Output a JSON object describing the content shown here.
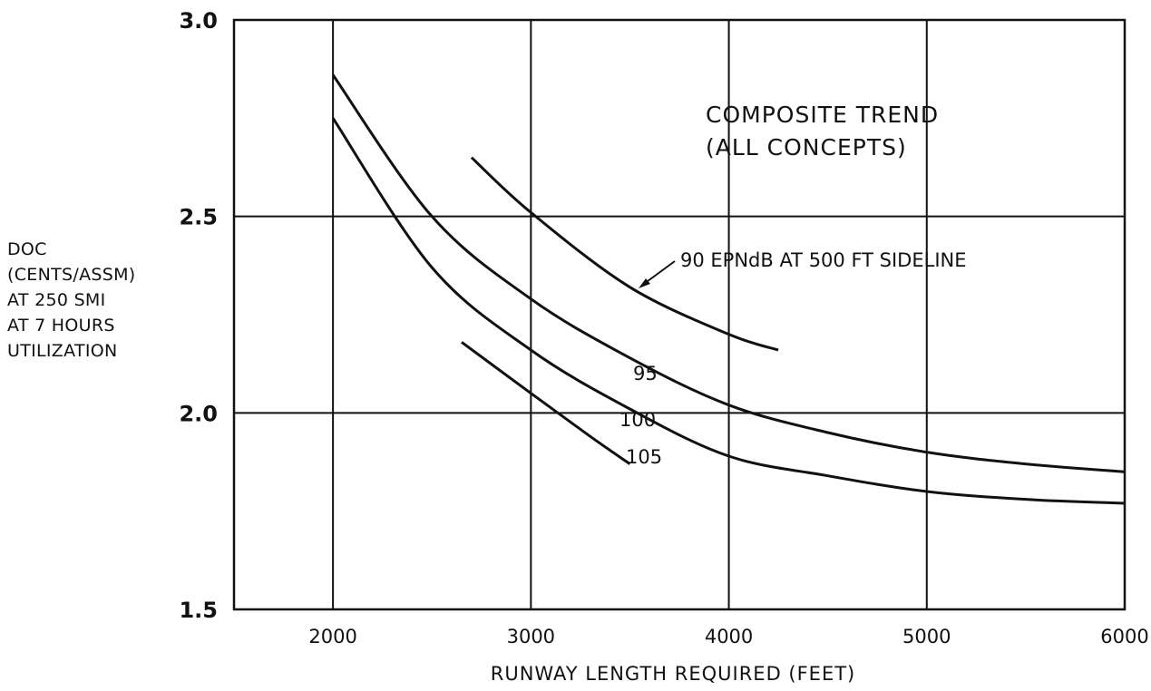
{
  "chart_data": {
    "type": "line",
    "xlabel": "RUNWAY LENGTH REQUIRED (FEET)",
    "ylabel_lines": [
      "DOC",
      "(CENTS/ASSM)",
      "AT 250 SMI",
      "AT 7 HOURS",
      "UTILIZATION"
    ],
    "xlim": [
      1500,
      6000
    ],
    "ylim": [
      1.5,
      3.0
    ],
    "x_ticks": [
      2000,
      3000,
      4000,
      5000,
      6000
    ],
    "y_ticks": [
      1.5,
      2.0,
      2.5,
      3.0
    ],
    "x_tick_labels": [
      "2000",
      "3000",
      "4000",
      "5000",
      "6000"
    ],
    "y_tick_labels": [
      "1.5",
      "2.0",
      "2.5",
      "3.0"
    ],
    "grid": true,
    "annotations": {
      "composite_line1": "COMPOSITE TREND",
      "composite_line2": "(ALL CONCEPTS)"
    },
    "series": [
      {
        "name": "90 EPNdB AT 500 FT SIDELINE",
        "points": [
          [
            2700,
            2.65
          ],
          [
            3000,
            2.51
          ],
          [
            3500,
            2.32
          ],
          [
            4000,
            2.2
          ],
          [
            4250,
            2.16
          ]
        ]
      },
      {
        "name": "95",
        "points": [
          [
            2000,
            2.86
          ],
          [
            2500,
            2.5
          ],
          [
            3000,
            2.29
          ],
          [
            3500,
            2.14
          ],
          [
            4000,
            2.02
          ],
          [
            4500,
            1.95
          ],
          [
            5000,
            1.9
          ],
          [
            5500,
            1.87
          ],
          [
            6000,
            1.85
          ]
        ]
      },
      {
        "name": "100",
        "points": [
          [
            2000,
            2.75
          ],
          [
            2500,
            2.37
          ],
          [
            3000,
            2.16
          ],
          [
            3500,
            2.01
          ],
          [
            4000,
            1.89
          ],
          [
            4500,
            1.84
          ],
          [
            5000,
            1.8
          ],
          [
            5500,
            1.78
          ],
          [
            6000,
            1.77
          ]
        ]
      },
      {
        "name": "105",
        "points": [
          [
            2650,
            2.18
          ],
          [
            3000,
            2.05
          ],
          [
            3300,
            1.94
          ],
          [
            3500,
            1.87
          ]
        ]
      }
    ]
  }
}
